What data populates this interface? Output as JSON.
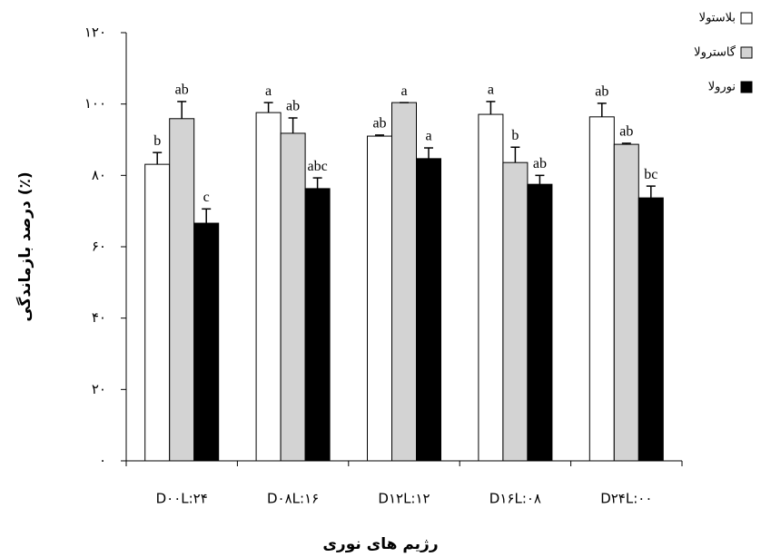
{
  "chart_data": {
    "type": "bar",
    "x_label": "رژیم های نوری",
    "y_label": "درصد بازماندگی (٪)",
    "categories": [
      "D۰۰L:۲۴",
      "D۰۸L:۱۶",
      "D۱۲L:۱۲",
      "D۱۶L:۰۸",
      "D۲۴L:۰۰"
    ],
    "ylim": [
      0,
      120
    ],
    "yticks": [
      {
        "value": 0,
        "label": "۰"
      },
      {
        "value": 20,
        "label": "۲۰"
      },
      {
        "value": 40,
        "label": "۴۰"
      },
      {
        "value": 60,
        "label": "۶۰"
      },
      {
        "value": 80,
        "label": "۸۰"
      },
      {
        "value": 100,
        "label": "۱۰۰"
      },
      {
        "value": 120,
        "label": "۱۲۰"
      }
    ],
    "legend_position": "top-right",
    "series": [
      {
        "name": "بلاستولا",
        "color": "#ffffff",
        "values": [
          83.1,
          97.6,
          91,
          97.1,
          96.4
        ],
        "errors": [
          3.3,
          2.8,
          0.3,
          3.6,
          3.8
        ],
        "labels": [
          "b",
          "a",
          "ab",
          "a",
          "ab"
        ]
      },
      {
        "name": "گاسترولا",
        "color": "#d3d3d3",
        "values": [
          95.9,
          91.8,
          100.4,
          83.6,
          88.7
        ],
        "errors": [
          4.8,
          4.3,
          0,
          4.3,
          0.3
        ],
        "labels": [
          "ab",
          "ab",
          "a",
          "b",
          "ab"
        ]
      },
      {
        "name": "نورولا",
        "color": "#000000",
        "values": [
          66.6,
          76.3,
          84.7,
          77.5,
          73.7
        ],
        "errors": [
          4,
          3,
          3,
          2.5,
          3.3
        ],
        "labels": [
          "c",
          "abc",
          "a",
          "ab",
          "bc"
        ]
      }
    ]
  }
}
